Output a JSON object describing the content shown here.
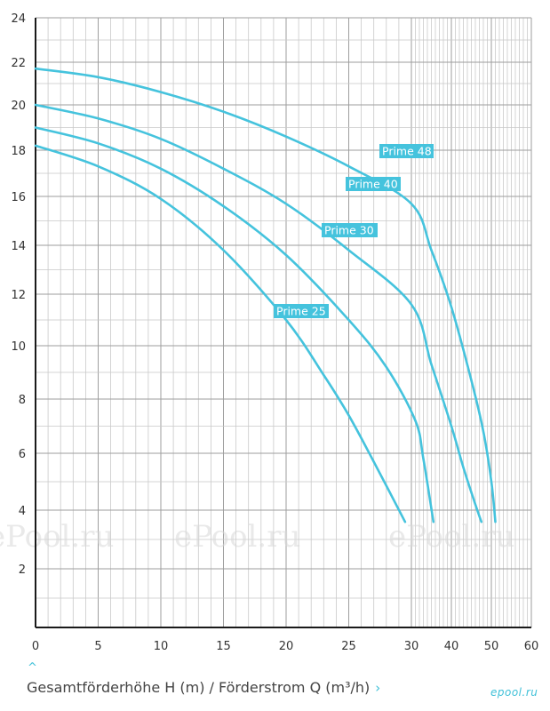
{
  "chart_data": {
    "type": "line",
    "xlabel": "Gesamtförderhöhe H (m) / Förderstrom Q (m³/h)",
    "x_ticks": [
      0,
      5,
      10,
      15,
      20,
      25,
      30,
      40,
      50,
      60
    ],
    "y_ticks": [
      2,
      4,
      6,
      8,
      10,
      12,
      14,
      16,
      18,
      20,
      22,
      24
    ],
    "xlim": [
      0,
      60
    ],
    "ylim": [
      0,
      24
    ],
    "grid": true,
    "accent_color": "#45c3dd",
    "series": [
      {
        "name": "Prime 48",
        "x": [
          0,
          5,
          10,
          15,
          20,
          25,
          30,
          35,
          40,
          45,
          48,
          50,
          51
        ],
        "y": [
          21.7,
          21.3,
          20.6,
          19.7,
          18.6,
          17.3,
          15.7,
          13.8,
          11.5,
          8.7,
          6.8,
          5.0,
          3.6
        ]
      },
      {
        "name": "Prime 40",
        "x": [
          0,
          5,
          10,
          15,
          20,
          25,
          30,
          35,
          40,
          43,
          46,
          47.5
        ],
        "y": [
          20.0,
          19.4,
          18.5,
          17.2,
          15.7,
          13.8,
          11.6,
          9.3,
          7.0,
          5.5,
          4.2,
          3.6
        ]
      },
      {
        "name": "Prime 30",
        "x": [
          0,
          5,
          10,
          15,
          20,
          25,
          28,
          31,
          33,
          35.5
        ],
        "y": [
          19.0,
          18.3,
          17.2,
          15.6,
          13.6,
          11.0,
          9.2,
          7.2,
          5.8,
          3.6
        ]
      },
      {
        "name": "Prime 25",
        "x": [
          0,
          5,
          10,
          15,
          20,
          23,
          25,
          27,
          29.5
        ],
        "y": [
          18.2,
          17.3,
          15.9,
          13.8,
          11.0,
          8.9,
          7.4,
          5.7,
          3.6
        ]
      }
    ]
  },
  "watermark": "ePool.ru",
  "logo": "epool.ru",
  "caption_chevron": "›",
  "caret_up": "^"
}
